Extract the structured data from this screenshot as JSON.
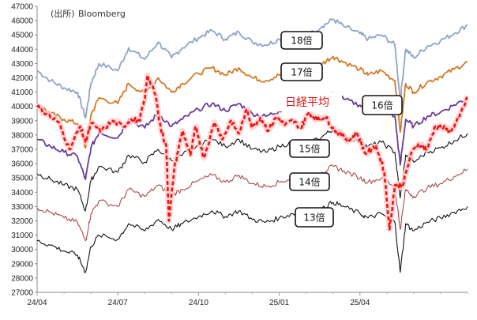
{
  "chart_data": {
    "type": "line",
    "source_note": "(出所)",
    "source_name": "Bloomberg",
    "ylim": [
      27000,
      47000
    ],
    "yticks": [
      27000,
      28000,
      29000,
      30000,
      31000,
      32000,
      33000,
      34000,
      35000,
      36000,
      37000,
      38000,
      39000,
      40000,
      41000,
      42000,
      43000,
      44000,
      45000,
      46000,
      47000
    ],
    "xticks": [
      "24/04",
      "24/07",
      "24/10",
      "25/01",
      "25/04"
    ],
    "x_months": 16,
    "series": [
      {
        "name": "18倍",
        "color": "#8ea4c8",
        "points": [
          [
            0,
            42500
          ],
          [
            0.5,
            41800
          ],
          [
            1,
            41300
          ],
          [
            1.5,
            41000
          ],
          [
            1.8,
            39200
          ],
          [
            2,
            41600
          ],
          [
            2.3,
            43000
          ],
          [
            3,
            42500
          ],
          [
            3.4,
            44100
          ],
          [
            4,
            43300
          ],
          [
            4.5,
            44500
          ],
          [
            5,
            43400
          ],
          [
            5.4,
            44100
          ],
          [
            6,
            44800
          ],
          [
            6.5,
            45300
          ],
          [
            7,
            44700
          ],
          [
            7.5,
            45200
          ],
          [
            8,
            44500
          ],
          [
            8.5,
            44300
          ],
          [
            9,
            44700
          ],
          [
            9.5,
            45000
          ],
          [
            10,
            44900
          ],
          [
            10.6,
            45600
          ],
          [
            11,
            46100
          ],
          [
            11.4,
            45600
          ],
          [
            12,
            45100
          ],
          [
            12.3,
            44700
          ],
          [
            12.8,
            45000
          ],
          [
            13.3,
            44300
          ],
          [
            13.5,
            40400
          ],
          [
            13.7,
            44000
          ],
          [
            14,
            43400
          ],
          [
            14.5,
            44200
          ],
          [
            15,
            44600
          ],
          [
            15.5,
            45100
          ],
          [
            16,
            45700
          ]
        ]
      },
      {
        "name": "17倍",
        "color": "#d07a28",
        "points": [
          [
            0,
            40200
          ],
          [
            0.5,
            39500
          ],
          [
            1,
            39100
          ],
          [
            1.5,
            38800
          ],
          [
            1.8,
            37100
          ],
          [
            2,
            39400
          ],
          [
            2.3,
            40600
          ],
          [
            3,
            40200
          ],
          [
            3.4,
            41600
          ],
          [
            4,
            40900
          ],
          [
            4.5,
            42000
          ],
          [
            5,
            41000
          ],
          [
            5.4,
            41600
          ],
          [
            6,
            42300
          ],
          [
            6.5,
            42700
          ],
          [
            7,
            42200
          ],
          [
            7.5,
            42700
          ],
          [
            8,
            42000
          ],
          [
            8.5,
            41800
          ],
          [
            9,
            42200
          ],
          [
            9.5,
            42500
          ],
          [
            10,
            42400
          ],
          [
            10.6,
            43000
          ],
          [
            11,
            43500
          ],
          [
            11.4,
            43100
          ],
          [
            12,
            42600
          ],
          [
            12.3,
            42200
          ],
          [
            12.8,
            42500
          ],
          [
            13.3,
            41800
          ],
          [
            13.5,
            38200
          ],
          [
            13.7,
            41600
          ],
          [
            14,
            41000
          ],
          [
            14.5,
            41700
          ],
          [
            15,
            42100
          ],
          [
            15.5,
            42600
          ],
          [
            16,
            43100
          ]
        ]
      },
      {
        "name": "16倍",
        "color": "#6a3d96",
        "points": [
          [
            0,
            37700
          ],
          [
            0.5,
            37200
          ],
          [
            1,
            36800
          ],
          [
            1.5,
            36500
          ],
          [
            1.8,
            34900
          ],
          [
            2,
            37100
          ],
          [
            2.3,
            38200
          ],
          [
            3,
            37800
          ],
          [
            3.4,
            39100
          ],
          [
            4,
            38500
          ],
          [
            4.5,
            39500
          ],
          [
            5,
            38600
          ],
          [
            5.4,
            39100
          ],
          [
            6,
            39800
          ],
          [
            6.5,
            40200
          ],
          [
            7,
            39700
          ],
          [
            7.5,
            40200
          ],
          [
            8,
            39500
          ],
          [
            8.5,
            39300
          ],
          [
            9,
            39700
          ],
          [
            9.5,
            40000
          ],
          [
            10,
            39900
          ],
          [
            10.6,
            40500
          ],
          [
            11,
            40900
          ],
          [
            11.4,
            40500
          ],
          [
            12,
            40100
          ],
          [
            12.3,
            39700
          ],
          [
            12.8,
            40000
          ],
          [
            13.3,
            39300
          ],
          [
            13.5,
            35900
          ],
          [
            13.7,
            39100
          ],
          [
            14,
            38600
          ],
          [
            14.5,
            39300
          ],
          [
            15,
            39600
          ],
          [
            15.5,
            40100
          ],
          [
            16,
            40600
          ]
        ]
      },
      {
        "name": "15倍",
        "color": "#111111",
        "points": [
          [
            0,
            35300
          ],
          [
            0.5,
            34900
          ],
          [
            1,
            34500
          ],
          [
            1.5,
            34200
          ],
          [
            1.8,
            32700
          ],
          [
            2,
            34800
          ],
          [
            2.3,
            35800
          ],
          [
            3,
            35400
          ],
          [
            3.4,
            36600
          ],
          [
            4,
            36100
          ],
          [
            4.5,
            37000
          ],
          [
            5,
            36200
          ],
          [
            5.4,
            36600
          ],
          [
            6,
            37300
          ],
          [
            6.5,
            37700
          ],
          [
            7,
            37200
          ],
          [
            7.5,
            37700
          ],
          [
            8,
            37000
          ],
          [
            8.5,
            36800
          ],
          [
            9,
            37200
          ],
          [
            9.5,
            37500
          ],
          [
            10,
            37400
          ],
          [
            10.6,
            37900
          ],
          [
            11,
            38400
          ],
          [
            11.4,
            38000
          ],
          [
            12,
            37500
          ],
          [
            12.3,
            37200
          ],
          [
            12.8,
            37500
          ],
          [
            13.3,
            36800
          ],
          [
            13.5,
            33600
          ],
          [
            13.7,
            36600
          ],
          [
            14,
            36100
          ],
          [
            14.5,
            36800
          ],
          [
            15,
            37100
          ],
          [
            15.5,
            37600
          ],
          [
            16,
            38100
          ]
        ]
      },
      {
        "name": "14倍",
        "color": "#a84a4a",
        "points": [
          [
            0,
            32900
          ],
          [
            0.5,
            32600
          ],
          [
            1,
            32200
          ],
          [
            1.5,
            31900
          ],
          [
            1.8,
            30600
          ],
          [
            2,
            32500
          ],
          [
            2.3,
            33400
          ],
          [
            3,
            33000
          ],
          [
            3.4,
            34200
          ],
          [
            4,
            33700
          ],
          [
            4.5,
            34500
          ],
          [
            5,
            33800
          ],
          [
            5.4,
            34200
          ],
          [
            6,
            34800
          ],
          [
            6.5,
            35200
          ],
          [
            7,
            34700
          ],
          [
            7.5,
            35200
          ],
          [
            8,
            34600
          ],
          [
            8.5,
            34400
          ],
          [
            9,
            34700
          ],
          [
            9.5,
            35000
          ],
          [
            10,
            34900
          ],
          [
            10.6,
            35400
          ],
          [
            11,
            35800
          ],
          [
            11.4,
            35500
          ],
          [
            12,
            35000
          ],
          [
            12.3,
            34700
          ],
          [
            12.8,
            35000
          ],
          [
            13.3,
            34400
          ],
          [
            13.5,
            31400
          ],
          [
            13.7,
            34200
          ],
          [
            14,
            33700
          ],
          [
            14.5,
            34300
          ],
          [
            15,
            34600
          ],
          [
            15.5,
            35100
          ],
          [
            16,
            35600
          ]
        ]
      },
      {
        "name": "13倍",
        "color": "#111111",
        "points": [
          [
            0,
            30600
          ],
          [
            0.5,
            30300
          ],
          [
            1,
            29900
          ],
          [
            1.5,
            29600
          ],
          [
            1.8,
            28400
          ],
          [
            2,
            30200
          ],
          [
            2.3,
            31000
          ],
          [
            3,
            30700
          ],
          [
            3.4,
            31800
          ],
          [
            4,
            31300
          ],
          [
            4.5,
            32100
          ],
          [
            5,
            31400
          ],
          [
            5.4,
            31800
          ],
          [
            6,
            32300
          ],
          [
            6.5,
            32700
          ],
          [
            7,
            32300
          ],
          [
            7.5,
            32700
          ],
          [
            8,
            32100
          ],
          [
            8.5,
            31900
          ],
          [
            9,
            32200
          ],
          [
            9.5,
            32500
          ],
          [
            10,
            32400
          ],
          [
            10.6,
            32900
          ],
          [
            11,
            33300
          ],
          [
            11.4,
            33000
          ],
          [
            12,
            32500
          ],
          [
            12.3,
            32200
          ],
          [
            12.8,
            32500
          ],
          [
            13.3,
            31900
          ],
          [
            13.5,
            28400
          ],
          [
            13.7,
            31800
          ],
          [
            14,
            31300
          ],
          [
            14.5,
            31900
          ],
          [
            15,
            32200
          ],
          [
            15.5,
            32600
          ],
          [
            16,
            33000
          ]
        ]
      },
      {
        "name": "日経平均",
        "color": "#ee1111",
        "dashed": true,
        "points": [
          [
            0,
            40000
          ],
          [
            0.4,
            39400
          ],
          [
            0.8,
            38900
          ],
          [
            1.2,
            37000
          ],
          [
            1.6,
            38600
          ],
          [
            1.8,
            37500
          ],
          [
            2,
            38800
          ],
          [
            2.4,
            38300
          ],
          [
            2.8,
            39000
          ],
          [
            3.2,
            38600
          ],
          [
            3.5,
            39100
          ],
          [
            3.8,
            39000
          ],
          [
            4.0,
            40500
          ],
          [
            4.1,
            42200
          ],
          [
            4.4,
            40800
          ],
          [
            4.6,
            38400
          ],
          [
            4.8,
            37200
          ],
          [
            4.9,
            32000
          ],
          [
            5.1,
            35700
          ],
          [
            5.4,
            38300
          ],
          [
            5.7,
            36600
          ],
          [
            5.9,
            38600
          ],
          [
            6.2,
            36400
          ],
          [
            6.6,
            38900
          ],
          [
            6.9,
            37700
          ],
          [
            7.2,
            39000
          ],
          [
            7.5,
            38100
          ],
          [
            7.8,
            39800
          ],
          [
            8.0,
            38500
          ],
          [
            8.3,
            39200
          ],
          [
            8.6,
            38300
          ],
          [
            8.9,
            39300
          ],
          [
            9.2,
            38700
          ],
          [
            9.5,
            39000
          ],
          [
            9.8,
            38500
          ],
          [
            10.1,
            39600
          ],
          [
            10.4,
            39100
          ],
          [
            10.7,
            39300
          ],
          [
            11.0,
            38500
          ],
          [
            11.3,
            38000
          ],
          [
            11.6,
            37600
          ],
          [
            11.9,
            38100
          ],
          [
            12.2,
            36700
          ],
          [
            12.6,
            37200
          ],
          [
            12.9,
            35500
          ],
          [
            13.1,
            31400
          ],
          [
            13.3,
            34500
          ],
          [
            13.6,
            34500
          ],
          [
            13.9,
            36700
          ],
          [
            14.2,
            37400
          ],
          [
            14.5,
            37000
          ],
          [
            14.8,
            38600
          ],
          [
            15.1,
            38500
          ],
          [
            15.4,
            38300
          ],
          [
            15.7,
            39300
          ],
          [
            16,
            40600
          ]
        ]
      }
    ],
    "labels": [
      {
        "text": "18倍"
      },
      {
        "text": "17倍"
      },
      {
        "text": "日経平均"
      },
      {
        "text": "16倍"
      },
      {
        "text": "15倍"
      },
      {
        "text": "14倍"
      },
      {
        "text": "13倍"
      }
    ]
  }
}
